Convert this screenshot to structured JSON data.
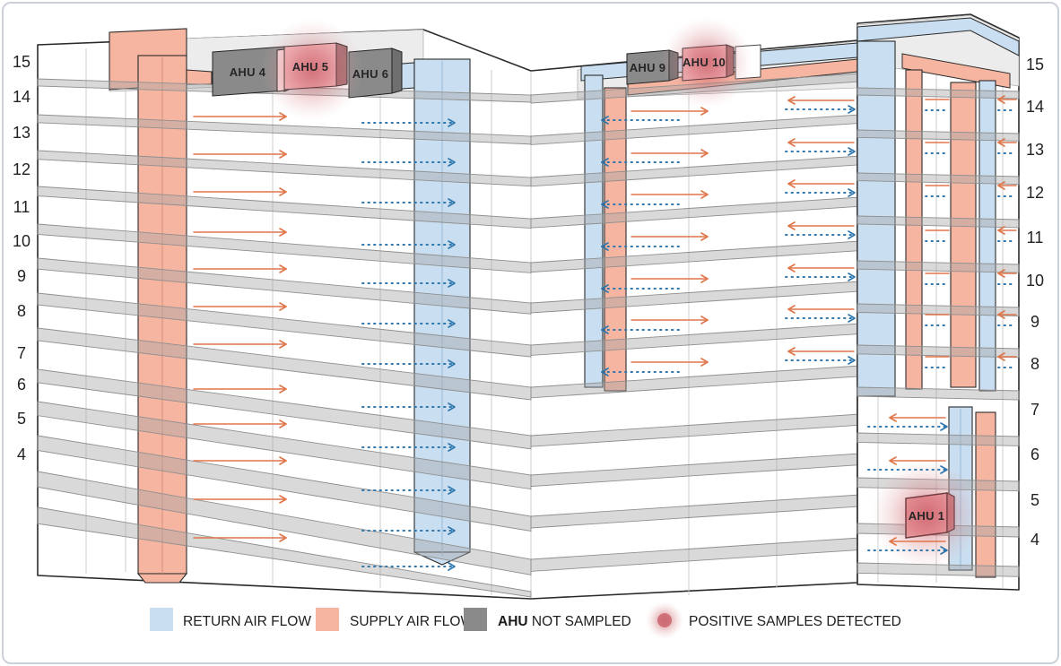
{
  "diagram": {
    "floor_labels": [
      "15",
      "14",
      "13",
      "12",
      "11",
      "10",
      "9",
      "8",
      "7",
      "6",
      "5",
      "4"
    ],
    "ahus": {
      "ahu4": "AHU 4",
      "ahu5": "AHU 5",
      "ahu6": "AHU 6",
      "ahu9": "AHU 9",
      "ahu10": "AHU 10",
      "ahu1": "AHU 1"
    }
  },
  "legend": {
    "return_label": "RETURN AIR FLOW",
    "supply_label": "SUPPLY AIR FLOW",
    "ahu_prefix": "AHU",
    "not_sampled_suffix": " NOT SAMPLED",
    "positive_label": "POSITIVE SAMPLES DETECTED"
  },
  "colors": {
    "return_blue": "#c9dff1",
    "supply_orange": "#f6b5a0",
    "ahu_gray": "#8a8a8a",
    "ahu_pink": "#f2b6ba",
    "positive_glow": "#bf4650",
    "arrow_supply": "#e0764b",
    "arrow_return": "#2e76ac"
  }
}
